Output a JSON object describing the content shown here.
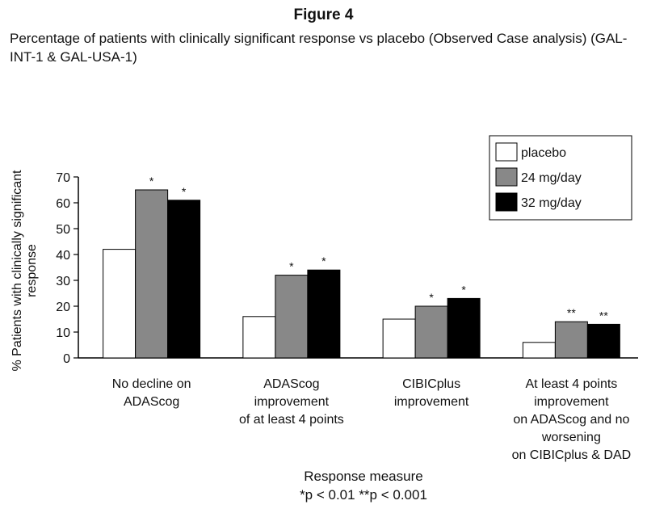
{
  "chart_data": {
    "type": "bar",
    "figure_label": "Figure 4",
    "title": "Percentage of patients with clinically significant response vs placebo (Observed Case analysis) (GAL-INT-1 & GAL-USA-1)",
    "ylabel": "% Patients with clinically significant response",
    "xlabel": "Response measure",
    "footnote": "*p < 0.01   **p < 0.001",
    "ylim": [
      0,
      70
    ],
    "yticks": [
      0,
      10,
      20,
      30,
      40,
      50,
      60,
      70
    ],
    "legend_position": "top-right",
    "categories": [
      [
        "No decline on",
        "ADAScog"
      ],
      [
        "ADAScog",
        "improvement",
        "of at least 4 points"
      ],
      [
        "CIBICplus",
        "improvement"
      ],
      [
        "At least 4 points",
        "improvement",
        "on ADAScog and no",
        "worsening",
        "on CIBICplus & DAD"
      ]
    ],
    "series": [
      {
        "name": "placebo",
        "color": "#ffffff",
        "values": [
          42,
          16,
          15,
          6
        ],
        "stars": [
          "",
          "",
          "",
          ""
        ]
      },
      {
        "name": "24 mg/day",
        "color": "#888888",
        "values": [
          65,
          32,
          20,
          14
        ],
        "stars": [
          "*",
          "*",
          "*",
          "**"
        ]
      },
      {
        "name": "32 mg/day",
        "color": "#000000",
        "values": [
          61,
          34,
          23,
          13
        ],
        "stars": [
          "*",
          "*",
          "*",
          "**"
        ]
      }
    ]
  }
}
